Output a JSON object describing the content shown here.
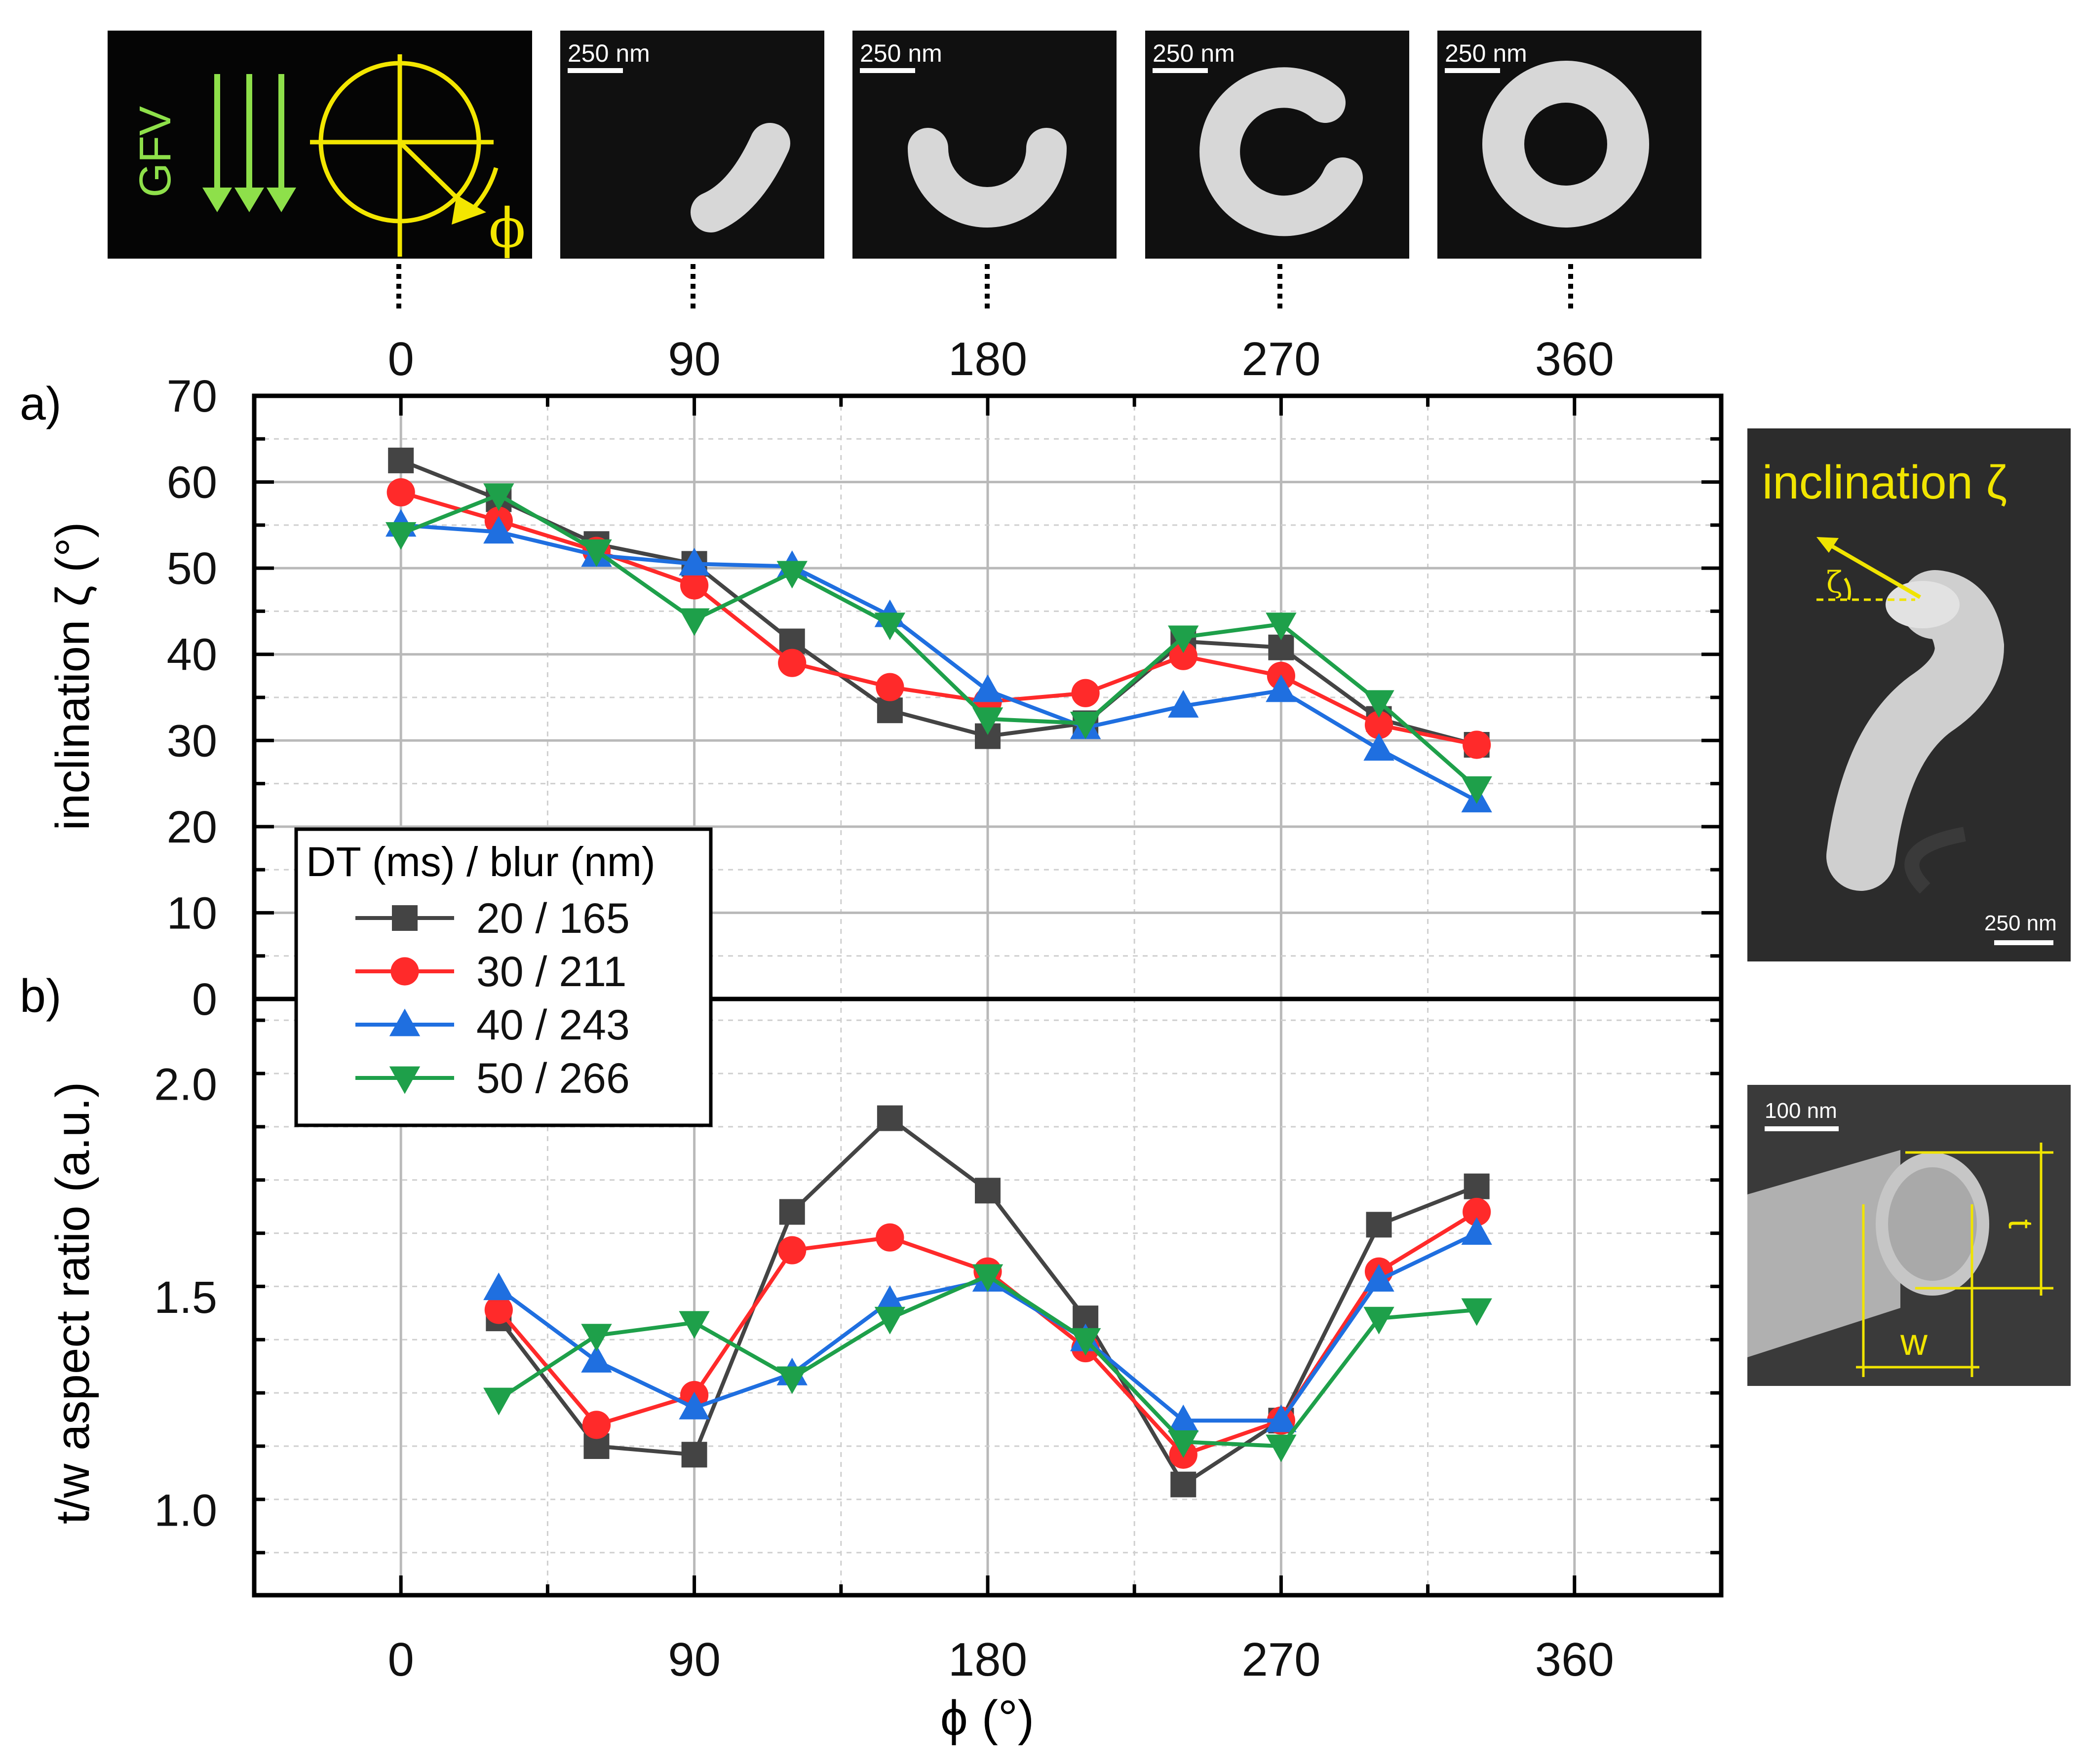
{
  "chart_data": [
    {
      "panel": "a)",
      "type": "line",
      "ylabel": "inclination ζ (°)",
      "ylim": [
        0,
        70
      ],
      "yticks": [
        0,
        10,
        20,
        30,
        40,
        50,
        60,
        70
      ],
      "xlim": [
        -45,
        405
      ],
      "xticks": [
        0,
        90,
        180,
        270,
        360
      ],
      "x": [
        0,
        30,
        60,
        90,
        120,
        150,
        180,
        210,
        240,
        270,
        300,
        330
      ],
      "series": [
        {
          "name": "20 / 165",
          "color": "#444444",
          "marker": "square",
          "values": [
            62.5,
            58,
            52.8,
            50.5,
            41.5,
            33.5,
            30.5,
            32,
            41.5,
            40.8,
            32.5,
            29.5
          ]
        },
        {
          "name": "30 / 211",
          "color": "#ff2a2a",
          "marker": "circle",
          "values": [
            58.8,
            55.5,
            52,
            48,
            39,
            36.2,
            34.5,
            35.5,
            39.8,
            37.5,
            31.8,
            29.5
          ]
        },
        {
          "name": "40 / 243",
          "color": "#1f6fe0",
          "marker": "triangle-up",
          "values": [
            55,
            54.2,
            51.5,
            50.5,
            50.2,
            44.5,
            35.8,
            31.5,
            34,
            35.8,
            29,
            23
          ]
        },
        {
          "name": "50 / 266",
          "color": "#1ea04a",
          "marker": "triangle-down",
          "values": [
            54,
            58.5,
            52,
            44,
            49.5,
            43.5,
            32.5,
            32,
            42,
            43.5,
            34.5,
            24.5
          ]
        }
      ]
    },
    {
      "panel": "b)",
      "type": "line",
      "xlabel": "ϕ (°)",
      "ylabel": "t/w aspect ratio (a.u.)",
      "ylim": [
        0.8,
        2.2
      ],
      "yticks": [
        "1.0",
        "1.5",
        "2.0"
      ],
      "xlim": [
        -45,
        405
      ],
      "xticks": [
        0,
        90,
        180,
        270,
        360
      ],
      "x": [
        30,
        60,
        90,
        120,
        150,
        180,
        210,
        240,
        270,
        300,
        330
      ],
      "series": [
        {
          "name": "20 / 165",
          "color": "#444444",
          "marker": "square",
          "values": [
            1.45,
            1.15,
            1.13,
            1.7,
            1.92,
            1.75,
            1.45,
            1.06,
            1.21,
            1.67,
            1.76
          ]
        },
        {
          "name": "30 / 211",
          "color": "#ff2a2a",
          "marker": "circle",
          "values": [
            1.47,
            1.2,
            1.27,
            1.61,
            1.64,
            1.56,
            1.38,
            1.13,
            1.21,
            1.56,
            1.7
          ]
        },
        {
          "name": "40 / 243",
          "color": "#1f6fe0",
          "marker": "triangle-up",
          "values": [
            1.52,
            1.35,
            1.24,
            1.32,
            1.49,
            1.54,
            1.4,
            1.21,
            1.21,
            1.54,
            1.65
          ]
        },
        {
          "name": "50 / 266",
          "color": "#1ea04a",
          "marker": "triangle-down",
          "values": [
            1.26,
            1.41,
            1.44,
            1.31,
            1.45,
            1.55,
            1.4,
            1.16,
            1.15,
            1.45,
            1.47
          ]
        }
      ]
    }
  ],
  "legend": {
    "title": "DT (ms) / blur (nm)",
    "entries": [
      "20 / 165",
      "30 / 211",
      "40 / 243",
      "50 / 266"
    ]
  },
  "top_axis": {
    "ticks": [
      "0",
      "90",
      "180",
      "270",
      "360"
    ]
  },
  "top_panels": {
    "schematic": {
      "label": "GFV",
      "angle_symbol": "ϕ"
    },
    "sem_scalebar": "250 nm",
    "count": 4
  },
  "side_panels": {
    "inclination_title": "inclination ζ",
    "inclination_angle_symbol": "ζ",
    "inclination_scalebar": "250 nm",
    "cross_section_scalebar": "100 nm",
    "t_label": "t",
    "w_label": "w"
  },
  "colors": {
    "schematic_arrows": "#8ee04a",
    "schematic_yellow": "#f3e600",
    "annot_yellow": "#f0e400"
  }
}
